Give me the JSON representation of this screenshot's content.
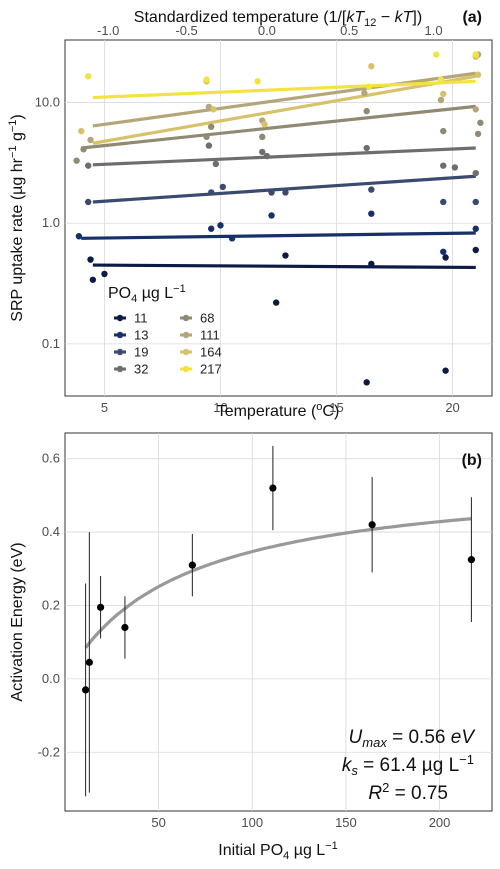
{
  "chart_data": [
    {
      "panel": "(a)",
      "type": "scatter",
      "xlabel": "Temperature (°C)",
      "x2label": "Standardized temperature (1/[kT12 − kT])",
      "ylabel": "SRP uptake rate (µg hr⁻¹ g⁻¹)",
      "x_ticks": [
        5,
        10,
        15,
        20
      ],
      "x2_ticks": [
        "-1.0",
        "-0.5",
        "0.0",
        "0.5",
        "1.0"
      ],
      "y_scale": "log10",
      "y_ticks": [
        "0.1",
        "1.0",
        "10.0"
      ],
      "xlim": [
        3.3,
        21.7
      ],
      "ylim": [
        0.037,
        33
      ],
      "grid": true,
      "legend": {
        "title": "PO4 µg L⁻¹",
        "position": "bottom-left",
        "columns": 2
      },
      "series": [
        {
          "name": "11",
          "color": "#0d1a44",
          "points": [
            [
              4.4,
              0.5
            ],
            [
              4.5,
              0.34
            ],
            [
              5.0,
              0.38
            ],
            [
              12.4,
              0.22
            ],
            [
              12.8,
              0.54
            ],
            [
              16.3,
              0.048
            ],
            [
              16.5,
              0.46
            ],
            [
              19.7,
              0.52
            ],
            [
              19.7,
              0.06
            ],
            [
              21.0,
              0.6
            ]
          ],
          "fit": [
            [
              4.5,
              0.45
            ],
            [
              21.0,
              0.43
            ]
          ]
        },
        {
          "name": "13",
          "color": "#16306a",
          "points": [
            [
              3.9,
              0.78
            ],
            [
              9.6,
              0.9
            ],
            [
              10.0,
              0.96
            ],
            [
              10.5,
              0.75
            ],
            [
              12.2,
              1.16
            ],
            [
              16.5,
              1.2
            ],
            [
              19.6,
              0.58
            ],
            [
              21.0,
              0.9
            ]
          ],
          "fit": [
            [
              4.0,
              0.75
            ],
            [
              21.0,
              0.83
            ]
          ]
        },
        {
          "name": "19",
          "color": "#3b4a6f",
          "points": [
            [
              4.3,
              1.5
            ],
            [
              9.6,
              1.8
            ],
            [
              10.1,
              2.0
            ],
            [
              12.2,
              1.8
            ],
            [
              12.8,
              1.8
            ],
            [
              16.5,
              1.9
            ],
            [
              19.6,
              1.5
            ],
            [
              21.0,
              1.5
            ]
          ],
          "fit": [
            [
              4.5,
              1.5
            ],
            [
              21.0,
              2.45
            ]
          ]
        },
        {
          "name": "32",
          "color": "#6e6e70",
          "points": [
            [
              4.3,
              3.0
            ],
            [
              9.5,
              4.4
            ],
            [
              9.8,
              3.1
            ],
            [
              11.8,
              3.9
            ],
            [
              12.0,
              3.6
            ],
            [
              16.3,
              4.2
            ],
            [
              19.6,
              3.0
            ],
            [
              20.1,
              2.9
            ],
            [
              21.0,
              2.6
            ]
          ],
          "fit": [
            [
              4.5,
              3.05
            ],
            [
              21.0,
              4.2
            ]
          ]
        },
        {
          "name": "68",
          "color": "#8f8a72",
          "points": [
            [
              3.8,
              3.3
            ],
            [
              4.1,
              4.1
            ],
            [
              9.6,
              6.3
            ],
            [
              9.4,
              5.2
            ],
            [
              11.8,
              5.2
            ],
            [
              16.3,
              8.5
            ],
            [
              19.6,
              5.8
            ],
            [
              21.1,
              5.5
            ],
            [
              21.2,
              6.8
            ]
          ],
          "fit": [
            [
              4.0,
              4.2
            ],
            [
              21.0,
              9.3
            ]
          ]
        },
        {
          "name": "111",
          "color": "#b3a678",
          "points": [
            [
              4.4,
              4.9
            ],
            [
              9.5,
              9.2
            ],
            [
              11.8,
              7.1
            ],
            [
              16.2,
              12.0
            ],
            [
              19.5,
              10.5
            ],
            [
              21.0,
              8.8
            ],
            [
              21.1,
              25.0
            ]
          ],
          "fit": [
            [
              4.5,
              6.4
            ],
            [
              21.0,
              17.5
            ]
          ]
        },
        {
          "name": "164",
          "color": "#d6c26a",
          "points": [
            [
              4.0,
              5.8
            ],
            [
              9.7,
              8.8
            ],
            [
              9.4,
              15.0
            ],
            [
              11.9,
              6.6
            ],
            [
              16.5,
              20.0
            ],
            [
              19.6,
              11.8
            ],
            [
              21.0,
              24.0
            ],
            [
              21.1,
              17.0
            ]
          ],
          "fit": [
            [
              4.5,
              4.6
            ],
            [
              21.0,
              16.5
            ]
          ]
        },
        {
          "name": "217",
          "color": "#f2e340",
          "points": [
            [
              4.3,
              16.5
            ],
            [
              9.4,
              15.5
            ],
            [
              11.6,
              15.0
            ],
            [
              16.4,
              13.5
            ],
            [
              19.3,
              25.0
            ],
            [
              19.5,
              15.5
            ],
            [
              21.0,
              25.0
            ]
          ],
          "fit": [
            [
              4.5,
              11.0
            ],
            [
              21.0,
              15.0
            ]
          ]
        }
      ]
    },
    {
      "panel": "(b)",
      "type": "scatter",
      "xlabel": "Initial PO4 µg L⁻¹",
      "ylabel": "Activation Energy (eV)",
      "x_ticks": [
        50,
        100,
        150,
        200
      ],
      "y_ticks": [
        "-0.2",
        "0.0",
        "0.2",
        "0.4",
        "0.6"
      ],
      "xlim": [
        0,
        228
      ],
      "ylim": [
        -0.36,
        0.67
      ],
      "grid": true,
      "points": [
        {
          "x": 11,
          "y": -0.03,
          "err": 0.29
        },
        {
          "x": 13,
          "y": 0.045,
          "err": 0.355
        },
        {
          "x": 19,
          "y": 0.195,
          "err": 0.085
        },
        {
          "x": 32,
          "y": 0.14,
          "err": 0.085
        },
        {
          "x": 68,
          "y": 0.31,
          "err": 0.085
        },
        {
          "x": 111,
          "y": 0.52,
          "err": 0.115
        },
        {
          "x": 164,
          "y": 0.42,
          "err": 0.13
        },
        {
          "x": 217,
          "y": 0.325,
          "err": 0.17
        }
      ],
      "fit": {
        "Umax": 0.56,
        "ks": 61.4,
        "x_start": 11,
        "x_end": 217,
        "color": "#999999"
      },
      "annotation": [
        "Umax = 0.56 eV",
        "ks = 61.4 µg L⁻¹",
        "R² = 0.75"
      ]
    }
  ],
  "text": {
    "a_panel": "(a)",
    "b_panel": "(b)",
    "a_top_label": "Standardized temperature (1/[kT12 − kT])",
    "a_xlabel": "Temperature (°C)",
    "a_ylabel": "SRP uptake rate (µg hr⁻¹ g⁻¹)",
    "b_xlabel": "Initial PO4 µg L⁻¹",
    "b_ylabel": "Activation Energy (eV)",
    "legend_title": "PO4 µg L⁻¹",
    "ann_umax": "Umax = 0.56 eV",
    "ann_ks": "ks = 61.4 µg L⁻¹",
    "ann_r2": "R² = 0.75"
  }
}
